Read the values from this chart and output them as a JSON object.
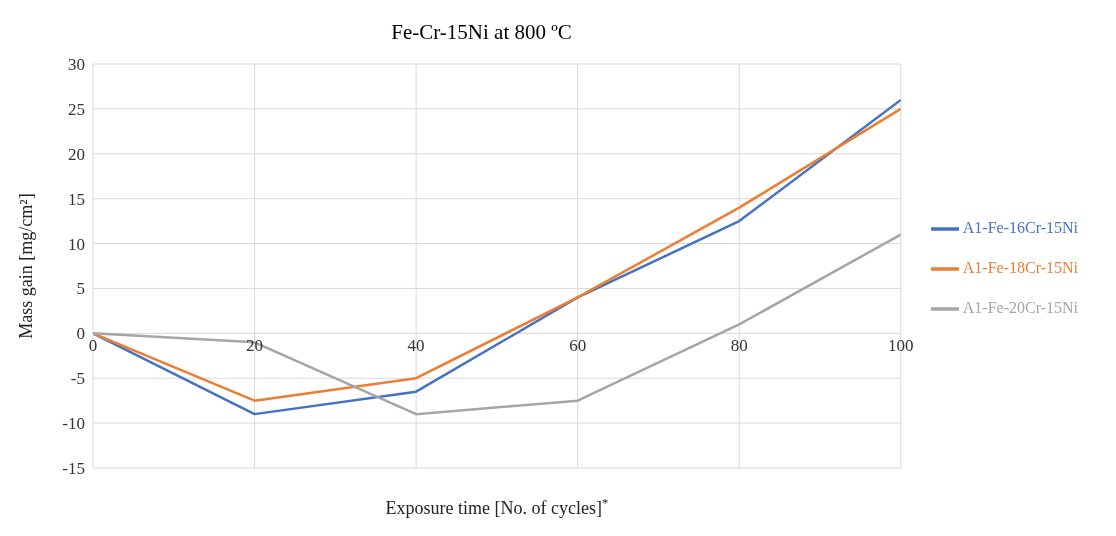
{
  "chart_data": {
    "type": "line",
    "title": "Fe-Cr-15Ni at 800 ºC",
    "xlabel": "Exposure time [No. of cycles]$^{*}$",
    "ylabel": "Mass gain [mg/cm²]",
    "x": [
      0,
      20,
      40,
      60,
      80,
      100
    ],
    "series": [
      {
        "name": "A1-Fe-16Cr-15Ni",
        "color": "#4472c4",
        "values": [
          0,
          -9,
          -6.5,
          4,
          12.5,
          26
        ]
      },
      {
        "name": "A1-Fe-18Cr-15Ni",
        "color": "#ed7d31",
        "values": [
          0,
          -7.5,
          -5,
          4,
          14,
          25
        ]
      },
      {
        "name": "A1-Fe-20Cr-15Ni",
        "color": "#a5a5a5",
        "values": [
          0,
          -1,
          -9,
          -7.5,
          1,
          11
        ]
      }
    ],
    "xlim": [
      0,
      100
    ],
    "xticks": [
      0,
      20,
      40,
      60,
      80,
      100
    ],
    "ylim": [
      -15,
      30
    ],
    "yticks": [
      -15,
      -10,
      -5,
      0,
      5,
      10,
      15,
      20,
      25,
      30
    ],
    "grid": true,
    "legend": "right",
    "marker": "none",
    "line_style": "solid"
  }
}
